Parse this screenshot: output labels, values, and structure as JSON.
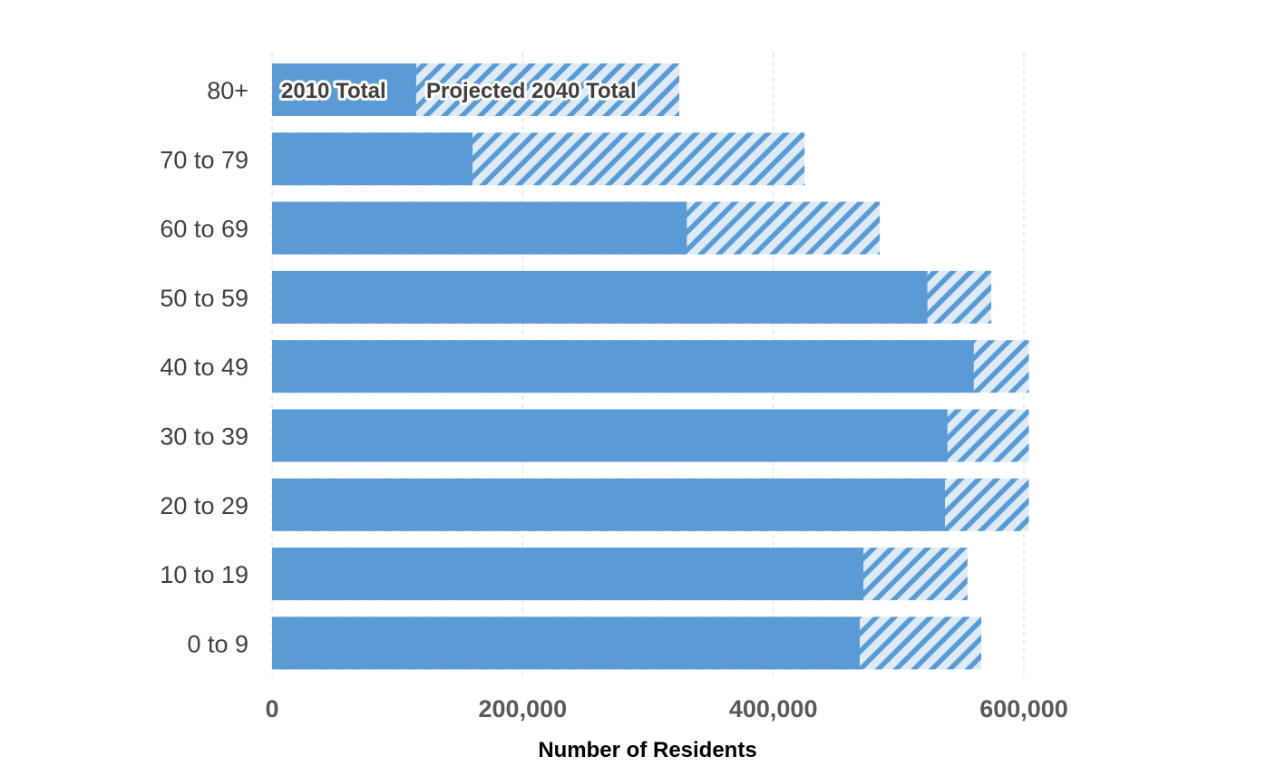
{
  "chart_data": {
    "type": "bar",
    "orientation": "horizontal",
    "stacked_overlay": true,
    "categories": [
      "80+",
      "70 to 79",
      "60 to 69",
      "50 to 59",
      "40 to 49",
      "30 to 39",
      "20 to 29",
      "10 to 19",
      "0 to 9"
    ],
    "series": [
      {
        "name": "2010 Total",
        "values": [
          115000,
          160000,
          331000,
          523000,
          560000,
          539000,
          537000,
          472000,
          469000
        ],
        "color": "#5b9bd5",
        "pattern": "solid"
      },
      {
        "name": "Projected 2040 Total",
        "values": [
          325000,
          425000,
          485000,
          574000,
          604000,
          604000,
          604000,
          555000,
          566000
        ],
        "color": "#5b9bd5",
        "pattern": "diagonal-hatch"
      }
    ],
    "title": "",
    "xlabel": "Number of Residents",
    "ylabel": "",
    "xlim": [
      0,
      600000
    ],
    "xticks": [
      0,
      200000,
      400000,
      600000
    ],
    "xtick_labels": [
      "0",
      "200,000",
      "400,000",
      "600,000"
    ],
    "grid": "vertical-dashed",
    "legend": "inside-top-bar"
  }
}
